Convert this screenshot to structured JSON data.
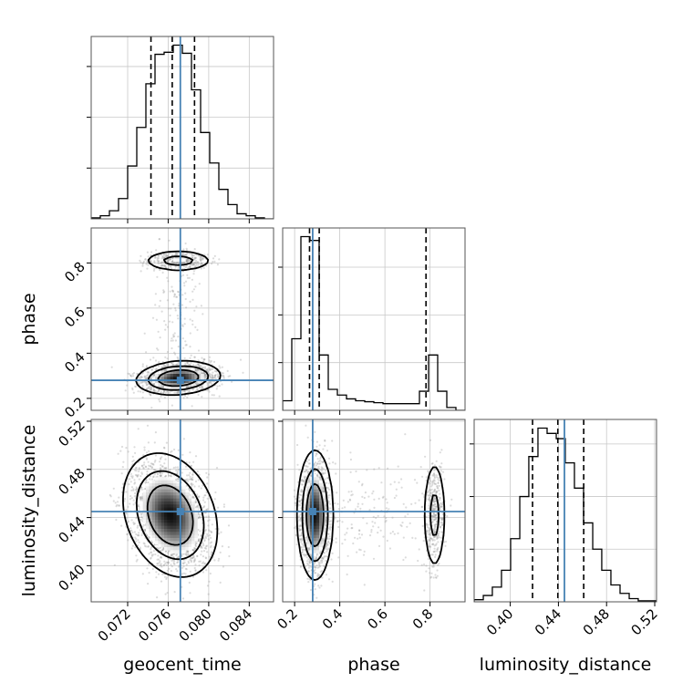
{
  "chart_data": {
    "type": "corner",
    "parameters": [
      "geocent_time",
      "phase",
      "luminosity_distance"
    ],
    "truths": {
      "geocent_time": 0.0772,
      "phase": 0.28,
      "luminosity_distance": 0.445
    },
    "truth_color": "#4682b4",
    "grid": true,
    "axes": {
      "geocent_time": {
        "label": "geocent_time",
        "range": [
          0.0684,
          0.0864
        ],
        "ticks": [
          0.072,
          0.076,
          0.08,
          0.084
        ],
        "tick_labels": [
          "0.072",
          "0.076",
          "0.080",
          "0.084"
        ]
      },
      "phase": {
        "label": "phase",
        "range": [
          0.147,
          0.955
        ],
        "ticks": [
          0.2,
          0.4,
          0.6,
          0.8
        ],
        "tick_labels": [
          "0.2",
          "0.4",
          "0.6",
          "0.8"
        ]
      },
      "luminosity_distance": {
        "label": "luminosity_distance",
        "range": [
          0.37,
          0.5215
        ],
        "ticks": [
          0.4,
          0.44,
          0.48,
          0.52
        ],
        "tick_labels": [
          "0.40",
          "0.44",
          "0.48",
          "0.52"
        ]
      }
    },
    "marginals": {
      "geocent_time": {
        "bins": [
          0.0684,
          0.0693,
          0.0702,
          0.0711,
          0.072,
          0.0729,
          0.0738,
          0.0747,
          0.0756,
          0.0765,
          0.0774,
          0.0783,
          0.0792,
          0.0801,
          0.081,
          0.0819,
          0.0828,
          0.0837,
          0.0846,
          0.0855,
          0.0864
        ],
        "counts": [
          1,
          3,
          8,
          20,
          52,
          90,
          133,
          162,
          164,
          171,
          163,
          127,
          85,
          55,
          29,
          14,
          5,
          3,
          1,
          0
        ],
        "quantiles": [
          0.0743,
          0.0764,
          0.0786
        ],
        "yticks": [
          50,
          100,
          150
        ]
      },
      "phase": {
        "bins": [
          0.147,
          0.1874,
          0.2278,
          0.2682,
          0.3086,
          0.349,
          0.3894,
          0.4298,
          0.4702,
          0.5106,
          0.551,
          0.5914,
          0.6318,
          0.6722,
          0.7126,
          0.753,
          0.7934,
          0.8338,
          0.8742,
          0.9146,
          0.955
        ],
        "counts": [
          10,
          75,
          182,
          178,
          58,
          22,
          16,
          12,
          10,
          9,
          8,
          7,
          7,
          7,
          7,
          20,
          58,
          20,
          3,
          0
        ],
        "quantiles": [
          0.266,
          0.309,
          0.782
        ],
        "yticks": [
          50,
          100,
          150
        ]
      },
      "luminosity_distance": {
        "bins": [
          0.37,
          0.3776,
          0.3851,
          0.3927,
          0.4003,
          0.4079,
          0.4154,
          0.423,
          0.4306,
          0.4382,
          0.4457,
          0.4533,
          0.4609,
          0.4685,
          0.476,
          0.4836,
          0.4912,
          0.4988,
          0.5063,
          0.5139,
          0.5215
        ],
        "counts": [
          2,
          6,
          14,
          30,
          60,
          100,
          138,
          165,
          160,
          155,
          132,
          108,
          75,
          50,
          30,
          16,
          8,
          3,
          1,
          1
        ],
        "quantiles": [
          0.4185,
          0.4395,
          0.461
        ],
        "yticks": [
          50,
          100,
          150
        ]
      }
    },
    "pairs": [
      {
        "x": "geocent_time",
        "y": "phase",
        "modes": [
          {
            "cx": 0.077,
            "cy": 0.29,
            "sx": 0.0017,
            "sy": 0.03,
            "rho": 0.15,
            "weight": 0.78
          },
          {
            "cx": 0.077,
            "cy": 0.81,
            "sx": 0.0015,
            "sy": 0.02,
            "rho": 0.0,
            "weight": 0.16
          },
          {
            "cx": 0.077,
            "cy": 0.56,
            "sx": 0.0013,
            "sy": 0.16,
            "rho": 0.0,
            "weight": 0.06
          }
        ]
      },
      {
        "x": "geocent_time",
        "y": "luminosity_distance",
        "modes": [
          {
            "cx": 0.0762,
            "cy": 0.442,
            "sx": 0.0019,
            "sy": 0.021,
            "rho": -0.25,
            "weight": 1.0
          }
        ]
      },
      {
        "x": "phase",
        "y": "luminosity_distance",
        "modes": [
          {
            "cx": 0.29,
            "cy": 0.442,
            "sx": 0.032,
            "sy": 0.022,
            "rho": 0.0,
            "weight": 0.78
          },
          {
            "cx": 0.82,
            "cy": 0.442,
            "sx": 0.022,
            "sy": 0.021,
            "rho": 0.0,
            "weight": 0.16
          },
          {
            "cx": 0.52,
            "cy": 0.442,
            "sx": 0.12,
            "sy": 0.024,
            "rho": 0.0,
            "weight": 0.06
          }
        ]
      }
    ]
  }
}
